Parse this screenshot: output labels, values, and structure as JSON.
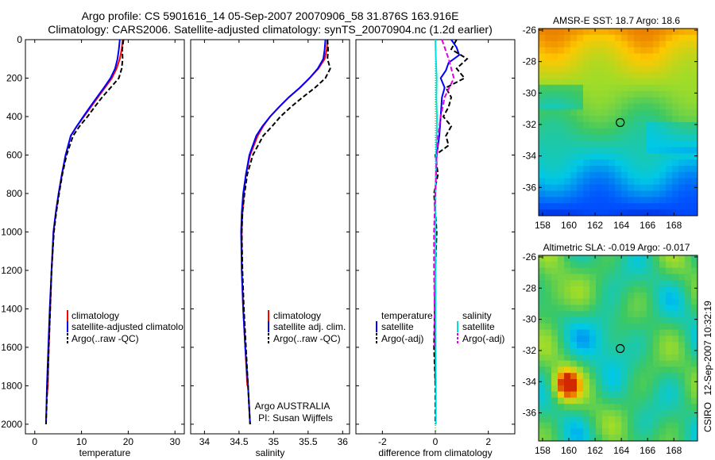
{
  "header": {
    "title_line1": "Argo profile: CS 5901616_14 05-Sep-2007 20070906_58 31.876S 163.916E",
    "title_line2": "Climatology: CARS2006. Satellite-adjusted climatology: synTS_20070904.nc (1.2d earlier)"
  },
  "colors": {
    "climatology": "#ff0000",
    "satellite": "#0000ff",
    "argo": "#000000",
    "salinity_satellite": "#00e0e0",
    "salinity_argo": "#e000e0",
    "zero_line": "#00a000"
  },
  "footer": {
    "operator": "CSIRO",
    "timestamp": "12-Sep-2007 10:32:19",
    "argo_country": "Argo AUSTRALIA",
    "pi": "PI: Susan Wijffels"
  },
  "legend_sat": "satellite-adjusted climatology",
  "chart_data": [
    {
      "id": "temperature",
      "type": "line",
      "xlabel": "temperature",
      "ylabel": "",
      "xlim": [
        -2,
        32
      ],
      "ylim": [
        2050,
        0
      ],
      "xticks": [
        0,
        10,
        20,
        30
      ],
      "yticks": [
        0,
        200,
        400,
        600,
        800,
        1000,
        1200,
        1400,
        1600,
        1800,
        2000
      ],
      "legend": [
        "climatology",
        "satellite-adjusted climatolo",
        "Argo(..raw -QC)"
      ],
      "series": [
        {
          "name": "climatology",
          "color": "#ff0000",
          "style": "solid",
          "x": [
            18.8,
            18.6,
            18.2,
            17.5,
            16.5,
            15.0,
            13.5,
            12.0,
            10.5,
            9.0,
            7.7,
            6.6,
            5.8,
            5.1,
            4.5,
            4.0,
            3.6,
            3.3,
            3.0,
            2.8,
            2.6
          ],
          "y": [
            0,
            50,
            100,
            150,
            200,
            250,
            300,
            350,
            400,
            450,
            500,
            600,
            700,
            800,
            900,
            1000,
            1200,
            1400,
            1600,
            1800,
            1850
          ]
        },
        {
          "name": "satellite-adjusted climatology",
          "color": "#0000ff",
          "style": "solid",
          "x": [
            18.2,
            18.0,
            17.7,
            17.2,
            16.2,
            14.8,
            13.3,
            11.8,
            10.4,
            9.0,
            7.7,
            6.6,
            5.8,
            5.1,
            4.5,
            4.0,
            3.6,
            3.2,
            2.9,
            2.6,
            2.4
          ],
          "y": [
            0,
            50,
            100,
            150,
            200,
            250,
            300,
            350,
            400,
            450,
            500,
            600,
            700,
            800,
            900,
            1000,
            1200,
            1400,
            1600,
            1800,
            2000
          ]
        },
        {
          "name": "Argo(..raw -QC)",
          "color": "#000000",
          "style": "dashed",
          "x": [
            19.0,
            18.7,
            18.8,
            18.6,
            18.0,
            16.2,
            14.4,
            12.8,
            11.3,
            9.6,
            8.2,
            6.8,
            5.9,
            5.2,
            4.6,
            4.1,
            3.6,
            3.3,
            3.0,
            2.7,
            2.4
          ],
          "y": [
            0,
            50,
            100,
            150,
            200,
            250,
            300,
            350,
            400,
            450,
            500,
            600,
            700,
            800,
            900,
            1000,
            1200,
            1400,
            1600,
            1800,
            2000
          ]
        }
      ]
    },
    {
      "id": "salinity",
      "type": "line",
      "xlabel": "salinity",
      "ylabel": "",
      "xlim": [
        33.8,
        36.1
      ],
      "ylim": [
        2050,
        0
      ],
      "xticks": [
        34,
        34.5,
        35,
        35.5,
        36
      ],
      "yticks": [
        0,
        200,
        400,
        600,
        800,
        1000,
        1200,
        1400,
        1600,
        1800,
        2000
      ],
      "legend": [
        "climatology",
        "satellite adj. clim.",
        "Argo(..raw -QC)"
      ],
      "series": [
        {
          "name": "climatology",
          "color": "#ff0000",
          "style": "solid",
          "x": [
            35.78,
            35.77,
            35.74,
            35.65,
            35.52,
            35.38,
            35.22,
            35.08,
            34.95,
            34.85,
            34.77,
            34.66,
            34.6,
            34.57,
            34.55,
            34.54,
            34.54,
            34.56,
            34.59,
            34.62
          ],
          "y": [
            0,
            50,
            100,
            150,
            200,
            250,
            300,
            350,
            400,
            450,
            500,
            600,
            700,
            800,
            900,
            1000,
            1200,
            1400,
            1600,
            1800
          ]
        },
        {
          "name": "satellite adj. clim.",
          "color": "#0000ff",
          "style": "solid",
          "x": [
            35.75,
            35.74,
            35.72,
            35.64,
            35.52,
            35.38,
            35.22,
            35.08,
            34.95,
            34.84,
            34.75,
            34.65,
            34.6,
            34.56,
            34.54,
            34.53,
            34.54,
            34.56,
            34.59,
            34.63,
            34.66
          ],
          "y": [
            0,
            50,
            100,
            150,
            200,
            250,
            300,
            350,
            400,
            450,
            500,
            600,
            700,
            800,
            900,
            1000,
            1200,
            1400,
            1600,
            1800,
            2000
          ]
        },
        {
          "name": "Argo(..raw -QC)",
          "color": "#000000",
          "style": "dashed",
          "x": [
            35.78,
            35.79,
            35.78,
            35.82,
            35.75,
            35.6,
            35.42,
            35.25,
            35.1,
            34.98,
            34.85,
            34.7,
            34.62,
            34.58,
            34.55,
            34.54,
            34.55,
            34.57,
            34.6,
            34.63,
            34.66
          ],
          "y": [
            0,
            50,
            100,
            150,
            200,
            250,
            300,
            350,
            400,
            450,
            500,
            600,
            700,
            800,
            900,
            1000,
            1200,
            1400,
            1600,
            1800,
            2000
          ]
        }
      ]
    },
    {
      "id": "difference",
      "type": "line",
      "xlabel": "difference from climatology",
      "ylabel": "",
      "xlim": [
        -3,
        3
      ],
      "ylim": [
        2050,
        0
      ],
      "xticks": [
        -2,
        0,
        2
      ],
      "yticks": [
        0,
        200,
        400,
        600,
        800,
        1000,
        1200,
        1400,
        1600,
        1800,
        2000
      ],
      "legend_temperature": [
        "temperature",
        "satellite",
        "Argo(-adj)"
      ],
      "legend_salinity": [
        "salinity",
        "satellite",
        "Argo(-adj)"
      ],
      "series": [
        {
          "name": "temperature satellite",
          "color": "#0000ff",
          "style": "solid",
          "x": [
            0.6,
            0.8,
            0.9,
            0.5,
            0.4,
            0.2,
            0.35,
            0.25,
            0.2,
            0.15,
            0.05,
            0.0,
            0.0,
            0.0,
            0.0,
            0.0,
            0.0
          ],
          "y": [
            0,
            40,
            80,
            120,
            160,
            200,
            250,
            300,
            400,
            500,
            600,
            800,
            1000,
            1200,
            1400,
            1600,
            1800
          ]
        },
        {
          "name": "temperature Argo(-adj)",
          "color": "#000000",
          "style": "dashed",
          "x": [
            0.8,
            0.6,
            1.2,
            0.8,
            1.1,
            0.4,
            0.6,
            0.5,
            0.3,
            0.6,
            0.4,
            0.5,
            0.0,
            0.1,
            -0.05,
            0.05,
            0.0,
            -0.05,
            0.0,
            0.0
          ],
          "y": [
            0,
            50,
            100,
            150,
            200,
            250,
            300,
            350,
            400,
            450,
            500,
            550,
            600,
            700,
            800,
            1000,
            1200,
            1600,
            1800,
            2000
          ]
        },
        {
          "name": "salinity satellite",
          "color": "#00e0e0",
          "style": "solid",
          "x": [
            0.0,
            0.02,
            0.05,
            0.04,
            0.06,
            0.05,
            0.03,
            0.02,
            0.0,
            0.0,
            0.01,
            0.01,
            0.02,
            0.02
          ],
          "y": [
            0,
            100,
            200,
            300,
            400,
            500,
            600,
            700,
            800,
            1000,
            1200,
            1500,
            1800,
            2000
          ]
        },
        {
          "name": "salinity Argo(-adj)",
          "color": "#e000e0",
          "style": "dashed",
          "x": [
            0.25,
            0.5,
            0.7,
            0.35,
            0.2,
            0.1,
            0.05,
            0.0,
            -0.05,
            -0.05,
            -0.03,
            -0.02
          ],
          "y": [
            0,
            100,
            200,
            300,
            400,
            500,
            600,
            800,
            1000,
            1200,
            1400,
            1600
          ]
        }
      ]
    },
    {
      "id": "sst_map",
      "type": "heatmap",
      "title": "AMSR-E SST: 18.7  Argo: 18.6",
      "xlim": [
        157.7,
        169.8
      ],
      "ylim": [
        -37.8,
        -25.9
      ],
      "xticks": [
        158,
        160,
        162,
        164,
        166,
        168
      ],
      "yticks": [
        -26,
        -28,
        -30,
        -32,
        -34,
        -36
      ],
      "marker": {
        "lon": 163.916,
        "lat": -31.876
      }
    },
    {
      "id": "sla_map",
      "type": "heatmap",
      "title": "Altimetric SLA: -0.019  Argo: -0.017",
      "xlim": [
        157.7,
        169.8
      ],
      "ylim": [
        -37.8,
        -25.9
      ],
      "xticks": [
        158,
        160,
        162,
        164,
        166,
        168
      ],
      "yticks": [
        -26,
        -28,
        -30,
        -32,
        -34,
        -36
      ],
      "marker": {
        "lon": 163.916,
        "lat": -31.876
      }
    }
  ]
}
